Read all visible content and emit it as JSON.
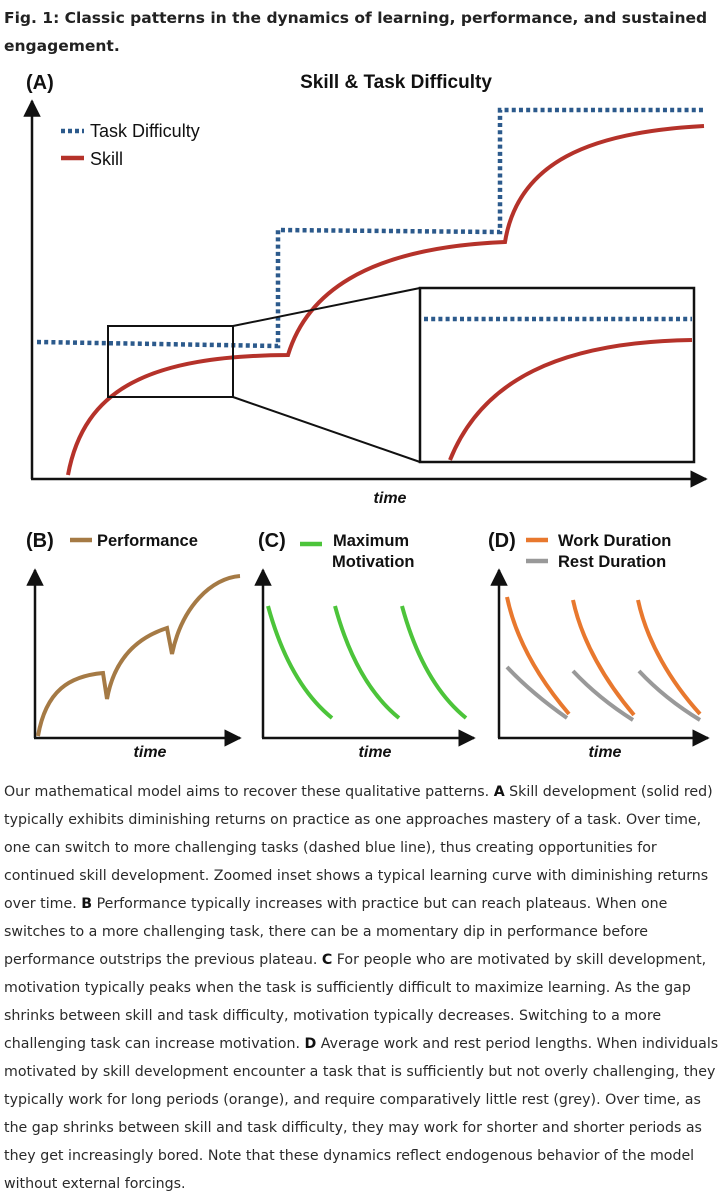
{
  "figure": {
    "title": "Fig. 1: Classic patterns in the dynamics of learning, performance, and sustained engagement."
  },
  "panels": {
    "a": {
      "letter": "(A)",
      "title": "Skill & Task Difficulty",
      "legend_task": "Task Difficulty",
      "legend_skill": "Skill",
      "xlabel": "time"
    },
    "b": {
      "letter": "(B)",
      "legend": "Performance",
      "xlabel": "time"
    },
    "c": {
      "letter": "(C)",
      "legend_line1": "Maximum",
      "legend_line2": "Motivation",
      "xlabel": "time"
    },
    "d": {
      "letter": "(D)",
      "legend_work": "Work Duration",
      "legend_rest": "Rest Duration",
      "xlabel": "time"
    }
  },
  "colors": {
    "task_difficulty": "#2c5a8c",
    "skill": "#b5322a",
    "performance": "#a57a45",
    "motivation": "#4cc43a",
    "work": "#e8782e",
    "rest": "#999999"
  },
  "caption": [
    {
      "text": "Our mathematical model aims to recover these qualitative patterns. "
    },
    {
      "text": "A",
      "bold": true
    },
    {
      "text": " Skill development (solid red) typically exhibits diminishing returns on practice as one approaches mastery of a task. Over time, one can switch to more challenging tasks (dashed blue line), thus creating opportunities for continued skill development. Zoomed inset shows a typical learning curve with diminishing returns over time. "
    },
    {
      "text": "B",
      "bold": true
    },
    {
      "text": " Performance typically increases with practice but can reach plateaus. When one switches to a more challenging task, there can be a momentary dip in performance before performance outstrips the previous plateau. "
    },
    {
      "text": "C",
      "bold": true
    },
    {
      "text": " For people who are motivated by skill development, motivation typically peaks when the task is sufficiently difficult to maximize learning. As the gap shrinks between skill and task difficulty, motivation typically decreases. Switching to a more challenging task can increase motivation. "
    },
    {
      "text": "D",
      "bold": true
    },
    {
      "text": " Average work and rest period lengths. When individuals motivated by skill development encounter a task that is sufficiently but not overly challenging, they typically work for long periods (orange), and require comparatively little rest (grey). Over time, as the gap shrinks between skill and task difficulty, they may work for shorter and shorter periods as they get increasingly bored. Note that these dynamics reflect endogenous behavior of the model without external forcings."
    }
  ]
}
